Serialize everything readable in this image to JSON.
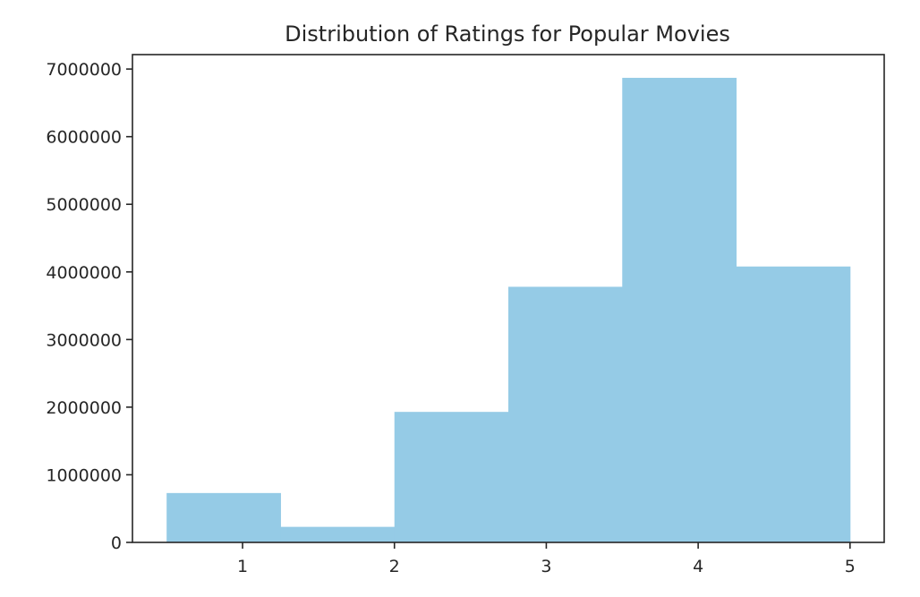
{
  "chart_data": {
    "type": "bar",
    "title": "Distribution of Ratings for Popular Movies",
    "xlabel": "",
    "ylabel": "",
    "bins": [
      {
        "x0": 0.5,
        "x1": 1.25,
        "value": 730000
      },
      {
        "x0": 1.25,
        "x1": 2.0,
        "value": 230000
      },
      {
        "x0": 2.0,
        "x1": 2.75,
        "value": 1930000
      },
      {
        "x0": 2.75,
        "x1": 3.5,
        "value": 3780000
      },
      {
        "x0": 3.5,
        "x1": 4.25,
        "value": 6870000
      },
      {
        "x0": 4.25,
        "x1": 5.0,
        "value": 4080000
      }
    ],
    "xticks": [
      1,
      2,
      3,
      4,
      5
    ],
    "xtick_labels": [
      "1",
      "2",
      "3",
      "4",
      "5"
    ],
    "yticks": [
      0,
      1000000,
      2000000,
      3000000,
      4000000,
      5000000,
      6000000,
      7000000
    ],
    "ytick_labels": [
      "0",
      "1000000",
      "2000000",
      "3000000",
      "4000000",
      "5000000",
      "6000000",
      "7000000"
    ],
    "xlim": [
      0.275,
      5.225
    ],
    "ylim": [
      0,
      7213500
    ],
    "grid": false,
    "legend": "none",
    "bar_color": "#95cbe6",
    "axis_color": "#262626"
  }
}
